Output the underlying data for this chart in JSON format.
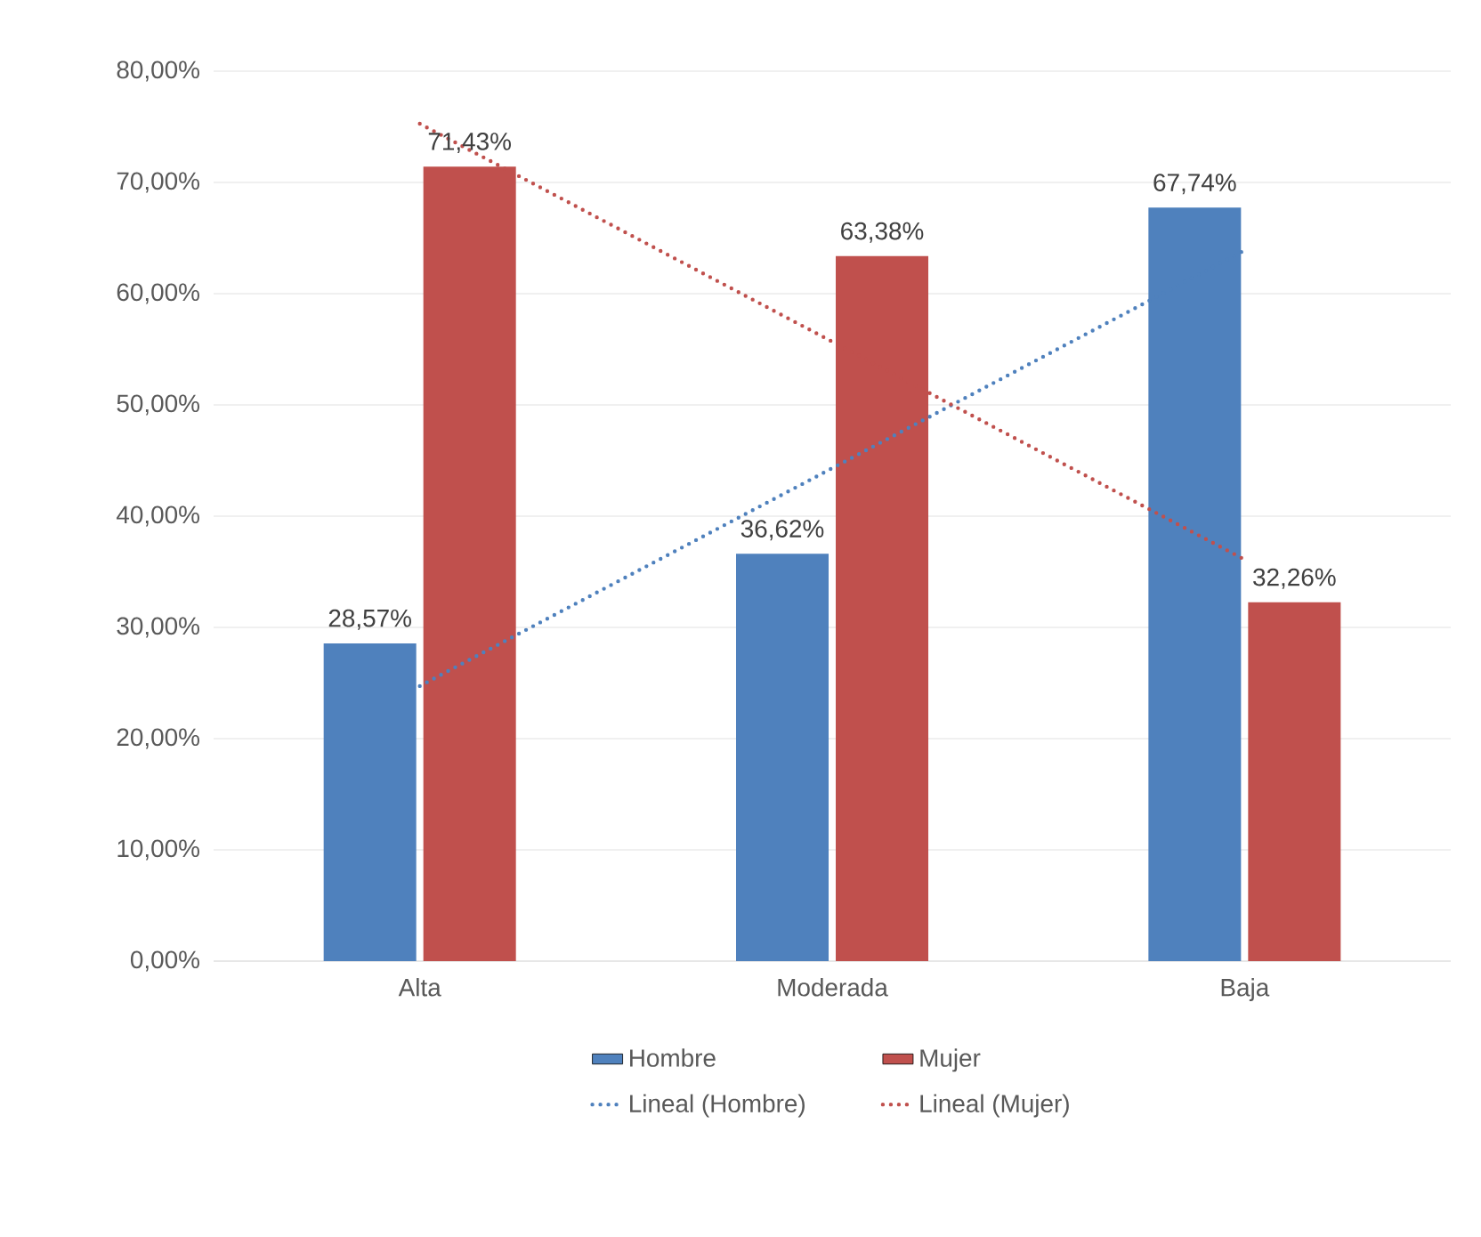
{
  "chart_data": {
    "type": "bar",
    "categories": [
      "Alta",
      "Moderada",
      "Baja"
    ],
    "series": [
      {
        "name": "Hombre",
        "color": "#4f81bd",
        "values": [
          28.57,
          36.62,
          67.74
        ],
        "value_labels": [
          "28,57%",
          "36,62%",
          "67,74%"
        ]
      },
      {
        "name": "Mujer",
        "color": "#c0504d",
        "values": [
          71.43,
          63.38,
          32.26
        ],
        "value_labels": [
          "71,43%",
          "63,38%",
          "32,26%"
        ]
      },
      {
        "name": "Lineal (Hombre)",
        "type": "line",
        "line_style": "dotted",
        "color": "#4f81bd",
        "values": [
          24.73,
          44.31,
          63.9
        ]
      },
      {
        "name": "Lineal (Mujer)",
        "type": "line",
        "line_style": "dotted",
        "color": "#c0504d",
        "values": [
          75.28,
          55.69,
          36.1
        ]
      }
    ],
    "ylim": [
      0,
      80
    ],
    "yticks": [
      {
        "value": 0,
        "label": "0,00%"
      },
      {
        "value": 10,
        "label": "10,00%"
      },
      {
        "value": 20,
        "label": "20,00%"
      },
      {
        "value": 30,
        "label": "30,00%"
      },
      {
        "value": 40,
        "label": "40,00%"
      },
      {
        "value": 50,
        "label": "50,00%"
      },
      {
        "value": 60,
        "label": "60,00%"
      },
      {
        "value": 70,
        "label": "70,00%"
      },
      {
        "value": 80,
        "label": "80,00%"
      }
    ],
    "grid": "y",
    "legend": "bottom"
  }
}
